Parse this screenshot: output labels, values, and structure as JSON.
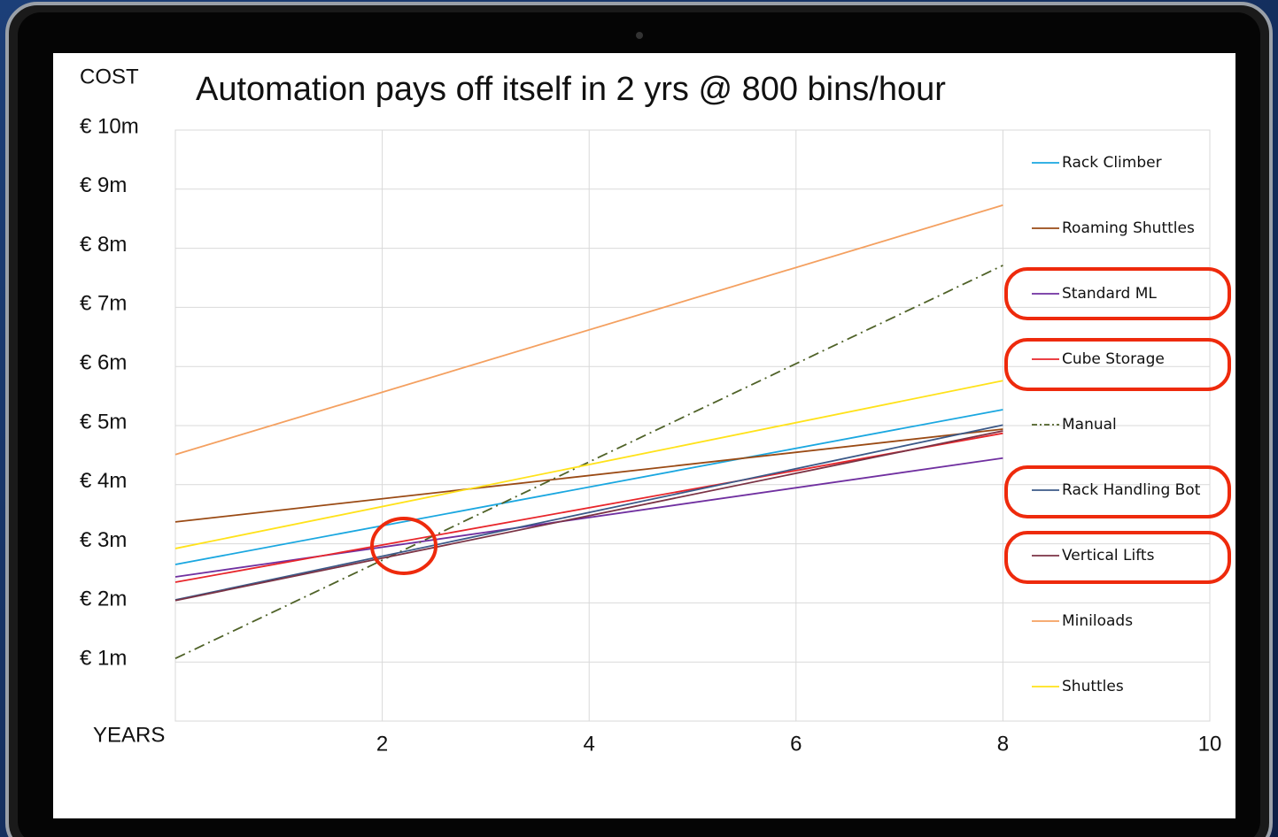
{
  "chart_data": {
    "type": "line",
    "title": "Automation pays off itself in 2 yrs @ 800 bins/hour",
    "ylabel": "COST",
    "xlabel": "YEARS",
    "x": [
      0,
      8
    ],
    "xlim": [
      0,
      10
    ],
    "xticks": [
      2,
      4,
      6,
      8,
      10
    ],
    "ylim": [
      0,
      10
    ],
    "yticks": [
      {
        "value": 1,
        "label": "€ 1m"
      },
      {
        "value": 2,
        "label": "€ 2m"
      },
      {
        "value": 3,
        "label": "€ 3m"
      },
      {
        "value": 4,
        "label": "€ 4m"
      },
      {
        "value": 5,
        "label": "€ 5m"
      },
      {
        "value": 6,
        "label": "€ 6m"
      },
      {
        "value": 7,
        "label": "€ 7m"
      },
      {
        "value": 8,
        "label": "€ 8m"
      },
      {
        "value": 9,
        "label": "€ 9m"
      },
      {
        "value": 10,
        "label": "€ 10m"
      }
    ],
    "grid": true,
    "legend": "right",
    "series": [
      {
        "name": "Rack Climber",
        "color": "#1aa7e0",
        "values": [
          2.65,
          5.27
        ]
      },
      {
        "name": "Roaming Shuttles",
        "color": "#9a4a14",
        "values": [
          3.37,
          4.94
        ]
      },
      {
        "name": "Standard ML",
        "color": "#7030a0",
        "values": [
          2.44,
          4.45
        ]
      },
      {
        "name": "Cube Storage",
        "color": "#e8262b",
        "values": [
          2.35,
          4.87
        ]
      },
      {
        "name": "Manual",
        "color": "#4f6228",
        "linestyle": "dashdot",
        "values": [
          1.06,
          7.71
        ]
      },
      {
        "name": "Rack Handling Bot",
        "color": "#3b5988",
        "values": [
          2.05,
          5.01
        ]
      },
      {
        "name": "Vertical Lifts",
        "color": "#7b3345",
        "values": [
          2.04,
          4.91
        ]
      },
      {
        "name": "Miniloads",
        "color": "#f4a060",
        "values": [
          4.51,
          8.73
        ]
      },
      {
        "name": "Shuttles",
        "color": "#ffe21a",
        "values": [
          2.92,
          5.76
        ]
      }
    ]
  }
}
